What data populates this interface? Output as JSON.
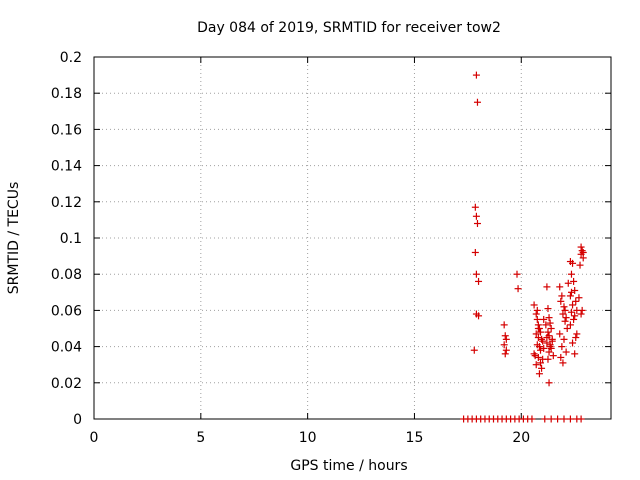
{
  "chart_data": {
    "type": "scatter",
    "title": "Day 084 of 2019, SRMTID for receiver tow2",
    "xlabel": "GPS time / hours",
    "ylabel": "SRMTID / TECUs",
    "xlim": [
      0,
      24.2
    ],
    "ylim": [
      0,
      0.2
    ],
    "x_ticks": [
      0,
      5,
      10,
      15,
      20
    ],
    "x_tick_labels": [
      "0",
      "5",
      "10",
      "15",
      "20"
    ],
    "y_ticks": [
      0,
      0.02,
      0.04,
      0.06,
      0.08,
      0.1,
      0.12,
      0.14,
      0.16,
      0.18,
      0.2
    ],
    "y_tick_labels": [
      "0",
      "0.02",
      "0.04",
      "0.06",
      "0.08",
      "0.1",
      "0.12",
      "0.14",
      "0.16",
      "0.18",
      "0.2"
    ],
    "grid": true,
    "marker": "+",
    "color": "#d40000",
    "series": [
      {
        "name": "SRMTID",
        "x": [
          17.9,
          17.95,
          17.85,
          17.9,
          17.95,
          17.85,
          17.9,
          18.0,
          17.9,
          18.0,
          17.8,
          19.2,
          19.25,
          19.3,
          19.2,
          19.3,
          19.25,
          19.8,
          19.85,
          20.6,
          20.7,
          20.75,
          20.8,
          20.85,
          20.9,
          20.7,
          20.8,
          20.95,
          21.0,
          20.75,
          20.85,
          21.05,
          20.9,
          20.6,
          20.65,
          20.8,
          21.0,
          20.9,
          20.7,
          20.95,
          20.85,
          21.05,
          20.75,
          20.8,
          21.2,
          21.25,
          21.3,
          21.35,
          21.4,
          21.25,
          21.3,
          21.45,
          21.2,
          21.35,
          21.4,
          21.3,
          21.5,
          21.25,
          21.15,
          21.45,
          21.3,
          21.2,
          21.35,
          21.8,
          21.9,
          21.85,
          22.0,
          21.95,
          22.1,
          22.05,
          22.15,
          21.8,
          22.0,
          21.9,
          22.1,
          21.85,
          21.95,
          22.2,
          22.05,
          22.3,
          22.4,
          22.35,
          22.45,
          22.5,
          22.3,
          22.55,
          22.4,
          22.6,
          22.35,
          22.5,
          22.45,
          22.3,
          22.6,
          22.55,
          22.4,
          22.7,
          22.5,
          22.35,
          22.8,
          22.85,
          22.9,
          22.8,
          22.9,
          22.75,
          22.85,
          22.8,
          17.3,
          17.5,
          17.7,
          17.9,
          18.1,
          18.3,
          18.5,
          18.7,
          18.9,
          19.1,
          19.3,
          19.5,
          19.7,
          19.9,
          20.1,
          20.3,
          20.5,
          21.1,
          21.4,
          21.7,
          22.0,
          22.3,
          22.6,
          22.8
        ],
        "y": [
          0.19,
          0.175,
          0.117,
          0.112,
          0.108,
          0.092,
          0.08,
          0.076,
          0.058,
          0.057,
          0.038,
          0.052,
          0.046,
          0.044,
          0.041,
          0.038,
          0.036,
          0.08,
          0.072,
          0.063,
          0.058,
          0.055,
          0.052,
          0.05,
          0.048,
          0.047,
          0.045,
          0.044,
          0.043,
          0.041,
          0.04,
          0.039,
          0.038,
          0.036,
          0.035,
          0.034,
          0.033,
          0.031,
          0.03,
          0.028,
          0.025,
          0.055,
          0.06,
          0.05,
          0.073,
          0.061,
          0.056,
          0.053,
          0.05,
          0.048,
          0.046,
          0.044,
          0.042,
          0.041,
          0.039,
          0.037,
          0.035,
          0.033,
          0.052,
          0.043,
          0.02,
          0.045,
          0.04,
          0.073,
          0.068,
          0.065,
          0.062,
          0.058,
          0.056,
          0.054,
          0.05,
          0.047,
          0.044,
          0.04,
          0.037,
          0.034,
          0.031,
          0.075,
          0.06,
          0.087,
          0.086,
          0.08,
          0.076,
          0.071,
          0.068,
          0.065,
          0.063,
          0.06,
          0.059,
          0.057,
          0.055,
          0.052,
          0.047,
          0.045,
          0.042,
          0.067,
          0.036,
          0.07,
          0.095,
          0.093,
          0.092,
          0.091,
          0.089,
          0.085,
          0.06,
          0.058,
          0,
          0,
          0,
          0,
          0,
          0,
          0,
          0,
          0,
          0,
          0,
          0,
          0,
          0,
          0,
          0,
          0,
          0,
          0,
          0,
          0,
          0,
          0,
          0
        ]
      }
    ]
  }
}
